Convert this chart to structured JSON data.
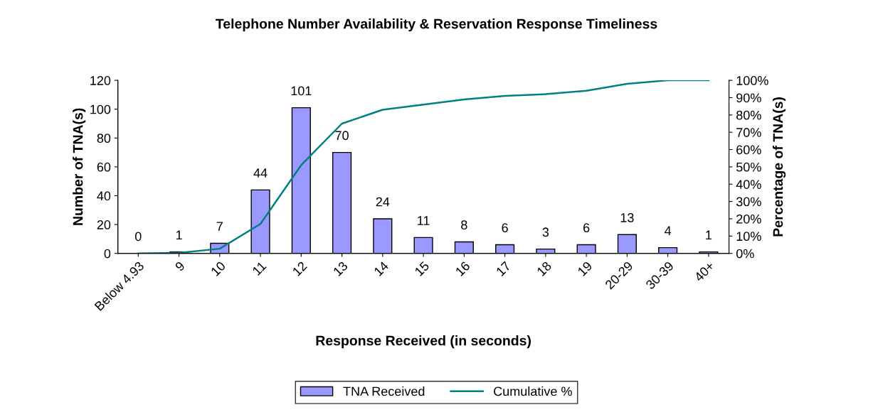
{
  "chart_data": {
    "type": "bar",
    "title": "Telephone Number Availability & Reservation Response Timeliness",
    "xlabel": "Response Received (in seconds)",
    "ylabel": "Number of TNA(s)",
    "y2label": "Percentage of TNA(s)",
    "categories": [
      "Below 4.93",
      "9",
      "10",
      "11",
      "12",
      "13",
      "14",
      "15",
      "16",
      "17",
      "18",
      "19",
      "20-29",
      "30-39",
      "40+"
    ],
    "series": [
      {
        "name": "TNA Received",
        "color": "#9999ff",
        "values": [
          0,
          1,
          7,
          44,
          101,
          70,
          24,
          11,
          8,
          6,
          3,
          6,
          13,
          4,
          1
        ],
        "value_labels": [
          "0",
          "1",
          "7",
          "44",
          "101",
          "70",
          "24",
          "11",
          "8",
          "6",
          "3",
          "6",
          "13",
          "4",
          "1"
        ]
      },
      {
        "name": "Cumulative %",
        "type": "line",
        "axis": "y2",
        "color": "#008080",
        "values": [
          0,
          0.3,
          2.7,
          17,
          51,
          75,
          83,
          86,
          89,
          91,
          92,
          94,
          98,
          100,
          100
        ]
      }
    ],
    "ylim": [
      0,
      120
    ],
    "yticks": [
      0,
      20,
      40,
      60,
      80,
      100,
      120
    ],
    "y2lim": [
      0,
      100
    ],
    "y2ticks": [
      {
        "value": 0,
        "label": "0%"
      },
      {
        "value": 10,
        "label": "10%"
      },
      {
        "value": 20,
        "label": "20%"
      },
      {
        "value": 30,
        "label": "30%"
      },
      {
        "value": 40,
        "label": "40%"
      },
      {
        "value": 50,
        "label": "50%"
      },
      {
        "value": 60,
        "label": "60%"
      },
      {
        "value": 70,
        "label": "70%"
      },
      {
        "value": 80,
        "label": "80%"
      },
      {
        "value": 90,
        "label": "90%"
      },
      {
        "value": 100,
        "label": "100%"
      }
    ],
    "grid": false,
    "legend": "bottom",
    "marker": "none",
    "line_style": "solid"
  }
}
